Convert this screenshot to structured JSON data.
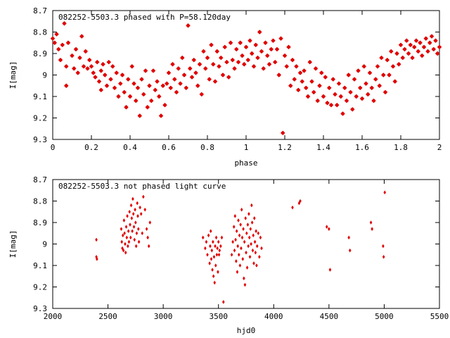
{
  "chart_data": [
    {
      "type": "scatter",
      "title": "082252-5503.3 phased with P=58.120day",
      "xlabel": "phase",
      "ylabel": "I[mag]",
      "xlim": [
        0,
        2
      ],
      "ylim": [
        9.3,
        8.7
      ],
      "y_inverted": true,
      "grid": false,
      "marker": "star",
      "color": "#e00000",
      "xticks": [
        "0",
        "0.2",
        "0.4",
        "0.6",
        "0.8",
        "1",
        "1.2",
        "1.4",
        "1.6",
        "1.8",
        "2"
      ],
      "yticks": [
        "8.7",
        "8.8",
        "8.9",
        "9",
        "9.1",
        "9.2",
        "9.3"
      ],
      "points": [
        [
          0.0,
          8.83
        ],
        [
          0.01,
          8.85
        ],
        [
          0.02,
          8.81
        ],
        [
          0.03,
          8.88
        ],
        [
          0.04,
          8.93
        ],
        [
          0.05,
          8.86
        ],
        [
          0.06,
          8.76
        ],
        [
          0.07,
          8.96
        ],
        [
          0.07,
          9.05
        ],
        [
          0.08,
          8.85
        ],
        [
          0.1,
          8.91
        ],
        [
          0.11,
          8.97
        ],
        [
          0.12,
          8.88
        ],
        [
          0.13,
          8.99
        ],
        [
          0.14,
          8.92
        ],
        [
          0.15,
          8.82
        ],
        [
          0.16,
          8.96
        ],
        [
          0.17,
          8.89
        ],
        [
          0.18,
          8.97
        ],
        [
          0.19,
          8.93
        ],
        [
          0.2,
          8.96
        ],
        [
          0.21,
          8.99
        ],
        [
          0.22,
          9.01
        ],
        [
          0.23,
          8.94
        ],
        [
          0.24,
          9.03
        ],
        [
          0.25,
          8.98
        ],
        [
          0.25,
          9.07
        ],
        [
          0.26,
          8.95
        ],
        [
          0.27,
          9.0
        ],
        [
          0.28,
          9.05
        ],
        [
          0.29,
          8.94
        ],
        [
          0.3,
          9.02
        ],
        [
          0.31,
          8.96
        ],
        [
          0.32,
          9.06
        ],
        [
          0.33,
          8.99
        ],
        [
          0.34,
          9.1
        ],
        [
          0.35,
          9.04
        ],
        [
          0.36,
          9.0
        ],
        [
          0.37,
          9.08
        ],
        [
          0.38,
          9.15
        ],
        [
          0.39,
          9.02
        ],
        [
          0.4,
          9.1
        ],
        [
          0.41,
          8.96
        ],
        [
          0.42,
          9.04
        ],
        [
          0.43,
          9.12
        ],
        [
          0.44,
          9.06
        ],
        [
          0.45,
          9.19
        ],
        [
          0.46,
          9.02
        ],
        [
          0.47,
          9.09
        ],
        [
          0.48,
          8.98
        ],
        [
          0.49,
          9.15
        ],
        [
          0.5,
          9.05
        ],
        [
          0.51,
          9.12
        ],
        [
          0.52,
          8.98
        ],
        [
          0.53,
          9.07
        ],
        [
          0.54,
          9.03
        ],
        [
          0.55,
          9.1
        ],
        [
          0.56,
          9.19
        ],
        [
          0.57,
          9.05
        ],
        [
          0.58,
          9.14
        ],
        [
          0.59,
          9.04
        ],
        [
          0.6,
          8.99
        ],
        [
          0.61,
          9.06
        ],
        [
          0.62,
          8.95
        ],
        [
          0.63,
          9.02
        ],
        [
          0.64,
          9.08
        ],
        [
          0.65,
          8.97
        ],
        [
          0.66,
          9.04
        ],
        [
          0.67,
          8.92
        ],
        [
          0.68,
          9.0
        ],
        [
          0.69,
          9.06
        ],
        [
          0.7,
          8.77
        ],
        [
          0.71,
          8.97
        ],
        [
          0.72,
          9.01
        ],
        [
          0.73,
          8.93
        ],
        [
          0.74,
          8.99
        ],
        [
          0.75,
          9.05
        ],
        [
          0.76,
          8.95
        ],
        [
          0.77,
          9.09
        ],
        [
          0.78,
          8.89
        ],
        [
          0.79,
          8.97
        ],
        [
          0.8,
          8.92
        ],
        [
          0.81,
          9.02
        ],
        [
          0.82,
          8.86
        ],
        [
          0.83,
          8.95
        ],
        [
          0.84,
          9.03
        ],
        [
          0.85,
          8.89
        ],
        [
          0.86,
          8.96
        ],
        [
          0.87,
          8.92
        ],
        [
          0.88,
          9.0
        ],
        [
          0.89,
          8.87
        ],
        [
          0.9,
          8.94
        ],
        [
          0.91,
          9.01
        ],
        [
          0.92,
          8.85
        ],
        [
          0.93,
          8.93
        ],
        [
          0.94,
          8.97
        ],
        [
          0.95,
          8.88
        ],
        [
          0.96,
          8.94
        ],
        [
          0.97,
          8.85
        ],
        [
          0.98,
          8.91
        ],
        [
          0.99,
          8.95
        ],
        [
          1.0,
          8.87
        ],
        [
          1.01,
          8.93
        ],
        [
          1.02,
          8.84
        ],
        [
          1.03,
          8.9
        ],
        [
          1.04,
          8.96
        ],
        [
          1.05,
          8.86
        ],
        [
          1.06,
          8.92
        ],
        [
          1.07,
          8.8
        ],
        [
          1.08,
          8.89
        ],
        [
          1.09,
          8.97
        ],
        [
          1.1,
          8.85
        ],
        [
          1.11,
          8.91
        ],
        [
          1.12,
          8.95
        ],
        [
          1.13,
          8.88
        ],
        [
          1.14,
          8.84
        ],
        [
          1.15,
          8.94
        ],
        [
          1.16,
          8.88
        ],
        [
          1.17,
          9.0
        ],
        [
          1.18,
          8.83
        ],
        [
          1.19,
          9.27
        ],
        [
          1.2,
          8.91
        ],
        [
          1.21,
          8.96
        ],
        [
          1.22,
          8.87
        ],
        [
          1.23,
          9.05
        ],
        [
          1.24,
          8.93
        ],
        [
          1.25,
          9.02
        ],
        [
          1.26,
          8.96
        ],
        [
          1.27,
          9.07
        ],
        [
          1.28,
          8.99
        ],
        [
          1.29,
          9.03
        ],
        [
          1.3,
          8.98
        ],
        [
          1.31,
          9.06
        ],
        [
          1.32,
          9.1
        ],
        [
          1.33,
          8.94
        ],
        [
          1.34,
          9.03
        ],
        [
          1.35,
          9.08
        ],
        [
          1.36,
          8.97
        ],
        [
          1.37,
          9.12
        ],
        [
          1.38,
          9.05
        ],
        [
          1.39,
          8.99
        ],
        [
          1.4,
          9.1
        ],
        [
          1.41,
          9.01
        ],
        [
          1.42,
          9.13
        ],
        [
          1.43,
          9.06
        ],
        [
          1.44,
          9.14
        ],
        [
          1.45,
          9.02
        ],
        [
          1.46,
          9.09
        ],
        [
          1.47,
          9.14
        ],
        [
          1.48,
          9.04
        ],
        [
          1.49,
          9.1
        ],
        [
          1.5,
          9.18
        ],
        [
          1.51,
          9.06
        ],
        [
          1.52,
          9.12
        ],
        [
          1.53,
          9.0
        ],
        [
          1.54,
          9.08
        ],
        [
          1.55,
          9.16
        ],
        [
          1.56,
          9.02
        ],
        [
          1.57,
          9.1
        ],
        [
          1.58,
          8.98
        ],
        [
          1.59,
          9.06
        ],
        [
          1.6,
          9.11
        ],
        [
          1.61,
          8.96
        ],
        [
          1.62,
          9.04
        ],
        [
          1.63,
          9.09
        ],
        [
          1.64,
          8.99
        ],
        [
          1.65,
          9.06
        ],
        [
          1.66,
          9.12
        ],
        [
          1.67,
          9.02
        ],
        [
          1.68,
          8.96
        ],
        [
          1.69,
          9.05
        ],
        [
          1.7,
          8.92
        ],
        [
          1.71,
          9.0
        ],
        [
          1.72,
          9.08
        ],
        [
          1.73,
          8.93
        ],
        [
          1.74,
          9.0
        ],
        [
          1.75,
          8.89
        ],
        [
          1.76,
          8.96
        ],
        [
          1.77,
          9.03
        ],
        [
          1.78,
          8.9
        ],
        [
          1.79,
          8.95
        ],
        [
          1.8,
          8.86
        ],
        [
          1.81,
          8.92
        ],
        [
          1.82,
          8.88
        ],
        [
          1.83,
          8.84
        ],
        [
          1.84,
          8.9
        ],
        [
          1.85,
          8.86
        ],
        [
          1.86,
          8.92
        ],
        [
          1.87,
          8.87
        ],
        [
          1.88,
          8.84
        ],
        [
          1.89,
          8.89
        ],
        [
          1.9,
          8.85
        ],
        [
          1.91,
          8.91
        ],
        [
          1.92,
          8.87
        ],
        [
          1.93,
          8.83
        ],
        [
          1.94,
          8.89
        ],
        [
          1.95,
          8.85
        ],
        [
          1.96,
          8.82
        ],
        [
          1.97,
          8.88
        ],
        [
          1.98,
          8.84
        ],
        [
          1.99,
          8.9
        ],
        [
          2.0,
          8.87
        ]
      ]
    },
    {
      "type": "scatter",
      "title": "082252-5503.3 not phased light curve",
      "xlabel": "hjd0",
      "ylabel": "I[mag]",
      "xlim": [
        2000,
        5500
      ],
      "ylim": [
        9.3,
        8.7
      ],
      "y_inverted": true,
      "grid": false,
      "marker": "diamond",
      "color": "#e00000",
      "xticks": [
        "2000",
        "2500",
        "3000",
        "3500",
        "4000",
        "4500",
        "5000",
        "5500"
      ],
      "yticks": [
        "8.7",
        "8.8",
        "8.9",
        "9",
        "9.1",
        "9.2",
        "9.3"
      ],
      "points": [
        [
          2395,
          9.06
        ],
        [
          2395,
          8.98
        ],
        [
          2400,
          9.07
        ],
        [
          2620,
          8.93
        ],
        [
          2625,
          8.99
        ],
        [
          2630,
          9.02
        ],
        [
          2635,
          8.96
        ],
        [
          2640,
          9.03
        ],
        [
          2645,
          8.89
        ],
        [
          2650,
          8.95
        ],
        [
          2655,
          9.0
        ],
        [
          2660,
          9.04
        ],
        [
          2665,
          8.92
        ],
        [
          2670,
          8.97
        ],
        [
          2675,
          8.87
        ],
        [
          2680,
          9.01
        ],
        [
          2685,
          8.94
        ],
        [
          2690,
          8.99
        ],
        [
          2695,
          8.85
        ],
        [
          2700,
          8.91
        ],
        [
          2705,
          8.97
        ],
        [
          2710,
          8.82
        ],
        [
          2715,
          8.88
        ],
        [
          2720,
          8.94
        ],
        [
          2725,
          8.79
        ],
        [
          2730,
          8.86
        ],
        [
          2735,
          8.92
        ],
        [
          2740,
          8.98
        ],
        [
          2745,
          8.84
        ],
        [
          2750,
          8.9
        ],
        [
          2755,
          9.01
        ],
        [
          2760,
          8.95
        ],
        [
          2765,
          8.81
        ],
        [
          2770,
          8.87
        ],
        [
          2775,
          8.93
        ],
        [
          2780,
          8.99
        ],
        [
          2790,
          8.83
        ],
        [
          2800,
          8.86
        ],
        [
          2810,
          8.95
        ],
        [
          2820,
          8.78
        ],
        [
          2835,
          8.84
        ],
        [
          2850,
          8.93
        ],
        [
          2860,
          8.97
        ],
        [
          2870,
          9.01
        ],
        [
          2880,
          8.9
        ],
        [
          3360,
          8.97
        ],
        [
          3380,
          9.02
        ],
        [
          3390,
          8.99
        ],
        [
          3400,
          9.05
        ],
        [
          3410,
          8.96
        ],
        [
          3420,
          9.09
        ],
        [
          3425,
          9.01
        ],
        [
          3430,
          8.94
        ],
        [
          3435,
          9.07
        ],
        [
          3440,
          9.03
        ],
        [
          3445,
          9.12
        ],
        [
          3450,
          8.99
        ],
        [
          3455,
          9.15
        ],
        [
          3460,
          9.06
        ],
        [
          3465,
          9.18
        ],
        [
          3470,
          9.01
        ],
        [
          3475,
          9.1
        ],
        [
          3480,
          8.97
        ],
        [
          3485,
          9.05
        ],
        [
          3490,
          9.02
        ],
        [
          3495,
          9.13
        ],
        [
          3500,
          8.99
        ],
        [
          3505,
          9.05
        ],
        [
          3510,
          9.03
        ],
        [
          3520,
          9.01
        ],
        [
          3530,
          8.97
        ],
        [
          3545,
          9.27
        ],
        [
          3620,
          9.05
        ],
        [
          3630,
          8.99
        ],
        [
          3640,
          8.92
        ],
        [
          3645,
          9.03
        ],
        [
          3650,
          8.87
        ],
        [
          3655,
          8.98
        ],
        [
          3660,
          9.08
        ],
        [
          3665,
          8.94
        ],
        [
          3670,
          9.13
        ],
        [
          3675,
          9.01
        ],
        [
          3680,
          8.89
        ],
        [
          3685,
          9.05
        ],
        [
          3690,
          8.96
        ],
        [
          3695,
          9.1
        ],
        [
          3700,
          8.91
        ],
        [
          3705,
          9.02
        ],
        [
          3710,
          8.84
        ],
        [
          3715,
          8.97
        ],
        [
          3720,
          9.07
        ],
        [
          3725,
          8.93
        ],
        [
          3730,
          9.16
        ],
        [
          3735,
          8.99
        ],
        [
          3740,
          9.19
        ],
        [
          3745,
          8.88
        ],
        [
          3750,
          9.04
        ],
        [
          3755,
          8.95
        ],
        [
          3760,
          9.11
        ],
        [
          3765,
          8.91
        ],
        [
          3770,
          9.01
        ],
        [
          3775,
          8.86
        ],
        [
          3780,
          8.97
        ],
        [
          3785,
          9.06
        ],
        [
          3790,
          8.93
        ],
        [
          3795,
          9.0
        ],
        [
          3800,
          8.82
        ],
        [
          3805,
          8.9
        ],
        [
          3810,
          9.03
        ],
        [
          3815,
          8.96
        ],
        [
          3820,
          9.09
        ],
        [
          3825,
          8.88
        ],
        [
          3830,
          8.99
        ],
        [
          3835,
          9.04
        ],
        [
          3840,
          8.94
        ],
        [
          3845,
          9.1
        ],
        [
          3850,
          9.01
        ],
        [
          3860,
          8.95
        ],
        [
          3870,
          9.06
        ],
        [
          3880,
          8.97
        ],
        [
          3890,
          9.02
        ],
        [
          4170,
          8.83
        ],
        [
          4230,
          8.81
        ],
        [
          4240,
          8.8
        ],
        [
          4480,
          8.92
        ],
        [
          4500,
          8.93
        ],
        [
          4510,
          9.12
        ],
        [
          4680,
          8.97
        ],
        [
          4690,
          9.03
        ],
        [
          4880,
          8.9
        ],
        [
          4890,
          8.93
        ],
        [
          4990,
          9.01
        ],
        [
          4995,
          9.06
        ],
        [
          5005,
          8.76
        ]
      ]
    }
  ]
}
